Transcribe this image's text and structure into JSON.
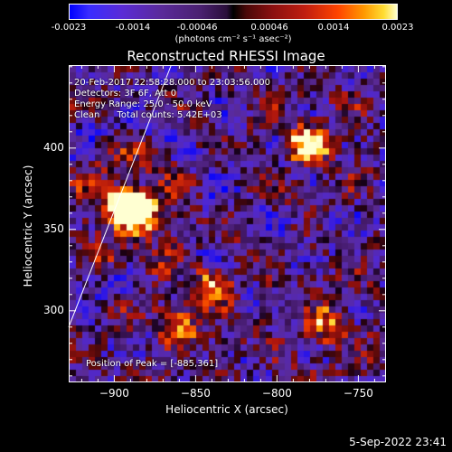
{
  "colorbar": {
    "ticks": [
      "-0.0023",
      "-0.0014",
      "-0.00046",
      "0.00046",
      "0.0014",
      "0.0023"
    ],
    "unit": "(photons cm⁻² s⁻¹ asec⁻²)"
  },
  "chart_data": {
    "type": "heatmap",
    "title": "Reconstructed RHESSI Image",
    "xlabel": "Heliocentric X (arcsec)",
    "ylabel": "Heliocentric Y (arcsec)",
    "xlim": [
      -928,
      -733
    ],
    "ylim": [
      256,
      451
    ],
    "x_ticks": [
      -900,
      -850,
      -800,
      -750
    ],
    "y_ticks": [
      300,
      350,
      400
    ],
    "x_tick_labels": [
      "−900",
      "−850",
      "−800",
      "−750"
    ],
    "y_tick_labels": [
      "300",
      "350",
      "400"
    ],
    "color_range": [
      -0.0023,
      0.0023
    ],
    "peak_position": [
      -885,
      361
    ],
    "bright_sources": [
      {
        "x": -885,
        "y": 361,
        "strength": 1.0
      },
      {
        "x": -896,
        "y": 366,
        "strength": 0.8
      },
      {
        "x": -780,
        "y": 402,
        "strength": 0.85
      },
      {
        "x": -770,
        "y": 290,
        "strength": 0.55
      },
      {
        "x": -840,
        "y": 315,
        "strength": 0.55
      },
      {
        "x": -860,
        "y": 290,
        "strength": 0.5
      }
    ],
    "limb_line": [
      [
        -928,
        290
      ],
      [
        -865,
        451
      ]
    ]
  },
  "info": {
    "line1": "20-Feb-2017 22:58:28.000 to 23:03:56.000",
    "line2": "Detectors: 3F 6F, Att 0",
    "line3": "Energy Range: 25.0 - 50.0 keV",
    "line4": "Clean      Total counts: 5.42E+03",
    "peak": "Position of Peak = [-885,361]"
  },
  "footer": "5-Sep-2022 23:41"
}
